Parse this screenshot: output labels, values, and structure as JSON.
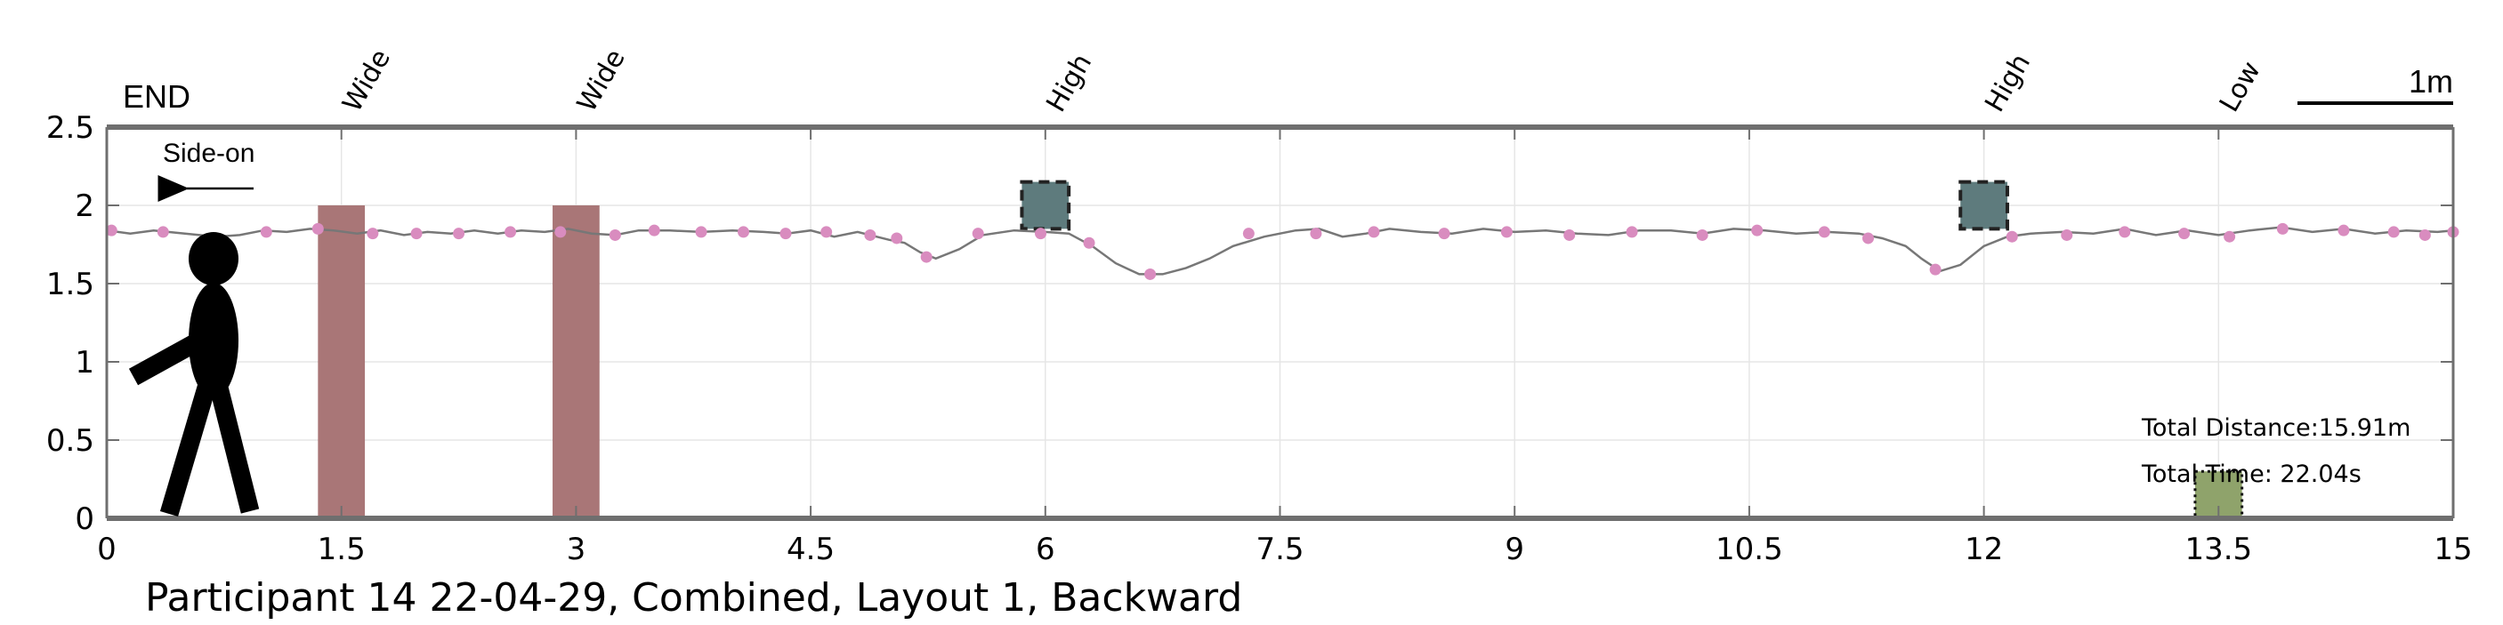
{
  "chart_data": {
    "type": "line",
    "caption": "Participant 14 22-04-29, Combined, Layout 1, Backward",
    "xlim": [
      0,
      15
    ],
    "ylim": [
      0,
      2.5
    ],
    "xticks": [
      "0",
      "1.5",
      "3",
      "4.5",
      "6",
      "7.5",
      "9",
      "10.5",
      "12",
      "13.5",
      "15"
    ],
    "yticks": [
      "0",
      "0.5",
      "1",
      "1.5",
      "2",
      "2.5"
    ],
    "grid": true,
    "end_label": "END",
    "direction_label": "Side-on",
    "scale_label": "1m",
    "total_distance_label": "Total Distance:15.91m",
    "total_time_label": "Total Time: 22.04s",
    "obstacles": [
      {
        "label": "Wide",
        "kind": "wide",
        "x": [
          1.35,
          1.65
        ],
        "y": [
          0,
          2.0
        ],
        "color": "#a97677"
      },
      {
        "label": "Wide",
        "kind": "wide",
        "x": [
          2.85,
          3.15
        ],
        "y": [
          0,
          2.0
        ],
        "color": "#a97677"
      },
      {
        "label": "High",
        "kind": "high",
        "x": [
          5.85,
          6.15
        ],
        "y": [
          1.85,
          2.15
        ],
        "color": "#5e7b7d"
      },
      {
        "label": "High",
        "kind": "high",
        "x": [
          11.85,
          12.15
        ],
        "y": [
          1.85,
          2.15
        ],
        "color": "#5e7b7d"
      },
      {
        "label": "Low",
        "kind": "low",
        "x": [
          13.35,
          13.65
        ],
        "y": [
          0,
          0.3
        ],
        "color": "#8fa36b"
      }
    ],
    "series": [
      {
        "line_color": "#777777",
        "marker_color": "#d98cbf",
        "line": [
          [
            0,
            1.84
          ],
          [
            0.15,
            1.82
          ],
          [
            0.3,
            1.84
          ],
          [
            0.5,
            1.82
          ],
          [
            0.7,
            1.8
          ],
          [
            0.85,
            1.81
          ],
          [
            1.0,
            1.84
          ],
          [
            1.15,
            1.83
          ],
          [
            1.3,
            1.85
          ],
          [
            1.45,
            1.84
          ],
          [
            1.6,
            1.82
          ],
          [
            1.75,
            1.84
          ],
          [
            1.9,
            1.81
          ],
          [
            2.05,
            1.83
          ],
          [
            2.2,
            1.82
          ],
          [
            2.35,
            1.84
          ],
          [
            2.5,
            1.82
          ],
          [
            2.65,
            1.84
          ],
          [
            2.8,
            1.83
          ],
          [
            2.95,
            1.85
          ],
          [
            3.1,
            1.82
          ],
          [
            3.25,
            1.81
          ],
          [
            3.4,
            1.84
          ],
          [
            3.6,
            1.84
          ],
          [
            3.8,
            1.83
          ],
          [
            4.0,
            1.84
          ],
          [
            4.2,
            1.83
          ],
          [
            4.35,
            1.82
          ],
          [
            4.5,
            1.84
          ],
          [
            4.65,
            1.8
          ],
          [
            4.8,
            1.83
          ],
          [
            5.0,
            1.78
          ],
          [
            5.1,
            1.76
          ],
          [
            5.2,
            1.7
          ],
          [
            5.3,
            1.66
          ],
          [
            5.45,
            1.72
          ],
          [
            5.6,
            1.81
          ],
          [
            5.8,
            1.84
          ],
          [
            6.0,
            1.83
          ],
          [
            6.15,
            1.82
          ],
          [
            6.3,
            1.74
          ],
          [
            6.45,
            1.63
          ],
          [
            6.6,
            1.56
          ],
          [
            6.75,
            1.56
          ],
          [
            6.9,
            1.6
          ],
          [
            7.05,
            1.66
          ],
          [
            7.2,
            1.74
          ],
          [
            7.4,
            1.8
          ],
          [
            7.6,
            1.84
          ],
          [
            7.75,
            1.85
          ],
          [
            7.9,
            1.8
          ],
          [
            8.05,
            1.82
          ],
          [
            8.2,
            1.85
          ],
          [
            8.4,
            1.83
          ],
          [
            8.6,
            1.82
          ],
          [
            8.8,
            1.85
          ],
          [
            9.0,
            1.83
          ],
          [
            9.2,
            1.84
          ],
          [
            9.4,
            1.82
          ],
          [
            9.6,
            1.81
          ],
          [
            9.8,
            1.84
          ],
          [
            10.0,
            1.84
          ],
          [
            10.2,
            1.82
          ],
          [
            10.4,
            1.85
          ],
          [
            10.6,
            1.84
          ],
          [
            10.8,
            1.82
          ],
          [
            11.0,
            1.83
          ],
          [
            11.2,
            1.82
          ],
          [
            11.35,
            1.79
          ],
          [
            11.5,
            1.74
          ],
          [
            11.6,
            1.66
          ],
          [
            11.72,
            1.58
          ],
          [
            11.85,
            1.62
          ],
          [
            12.0,
            1.74
          ],
          [
            12.15,
            1.8
          ],
          [
            12.3,
            1.82
          ],
          [
            12.5,
            1.83
          ],
          [
            12.7,
            1.82
          ],
          [
            12.9,
            1.85
          ],
          [
            13.1,
            1.81
          ],
          [
            13.3,
            1.84
          ],
          [
            13.5,
            1.81
          ],
          [
            13.7,
            1.84
          ],
          [
            13.9,
            1.86
          ],
          [
            14.1,
            1.83
          ],
          [
            14.3,
            1.85
          ],
          [
            14.5,
            1.82
          ],
          [
            14.7,
            1.84
          ],
          [
            14.9,
            1.83
          ],
          [
            15.0,
            1.84
          ]
        ],
        "markers": [
          [
            0.03,
            1.84
          ],
          [
            0.36,
            1.83
          ],
          [
            1.02,
            1.83
          ],
          [
            1.35,
            1.85
          ],
          [
            1.7,
            1.82
          ],
          [
            1.98,
            1.82
          ],
          [
            2.25,
            1.82
          ],
          [
            2.58,
            1.83
          ],
          [
            2.9,
            1.83
          ],
          [
            3.25,
            1.81
          ],
          [
            3.5,
            1.84
          ],
          [
            3.8,
            1.83
          ],
          [
            4.07,
            1.83
          ],
          [
            4.34,
            1.82
          ],
          [
            4.6,
            1.83
          ],
          [
            4.88,
            1.81
          ],
          [
            5.05,
            1.79
          ],
          [
            5.24,
            1.67
          ],
          [
            5.57,
            1.82
          ],
          [
            5.97,
            1.82
          ],
          [
            6.28,
            1.76
          ],
          [
            6.67,
            1.56
          ],
          [
            7.3,
            1.82
          ],
          [
            7.73,
            1.82
          ],
          [
            8.1,
            1.83
          ],
          [
            8.55,
            1.82
          ],
          [
            8.95,
            1.83
          ],
          [
            9.35,
            1.81
          ],
          [
            9.75,
            1.83
          ],
          [
            10.2,
            1.81
          ],
          [
            10.55,
            1.84
          ],
          [
            10.98,
            1.83
          ],
          [
            11.26,
            1.79
          ],
          [
            11.69,
            1.59
          ],
          [
            12.18,
            1.8
          ],
          [
            12.53,
            1.81
          ],
          [
            12.9,
            1.83
          ],
          [
            13.28,
            1.82
          ],
          [
            13.57,
            1.8
          ],
          [
            13.91,
            1.85
          ],
          [
            14.3,
            1.84
          ],
          [
            14.62,
            1.83
          ],
          [
            14.82,
            1.81
          ],
          [
            15.0,
            1.83
          ]
        ]
      }
    ]
  }
}
